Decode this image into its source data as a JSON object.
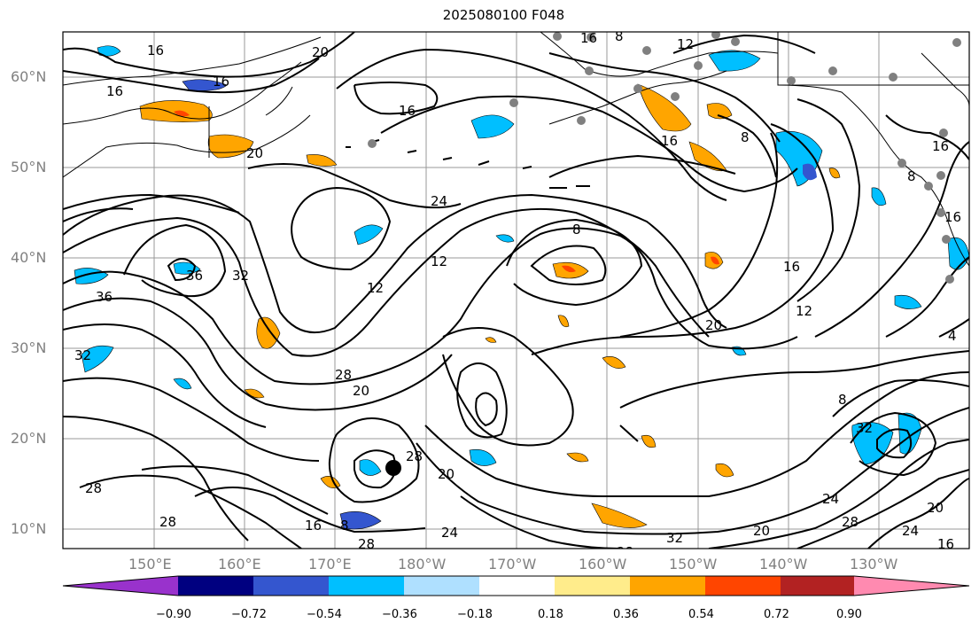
{
  "title": "2025080100 F048",
  "lat_labels": [
    "60°N",
    "50°N",
    "40°N",
    "30°N",
    "20°N",
    "10°N"
  ],
  "lon_labels": [
    "150°E",
    "160°E",
    "170°E",
    "180°W",
    "170°W",
    "160°W",
    "150°W",
    "140°W",
    "130°W"
  ],
  "colorbar": {
    "ticks": [
      "−0.90",
      "−0.72",
      "−0.54",
      "−0.36",
      "−0.18",
      "0.18",
      "0.36",
      "0.54",
      "0.72",
      "0.90"
    ],
    "colors": [
      "#9932cc",
      "#000080",
      "#3456cf",
      "#00bfff",
      "#afe0ff",
      "#ffffff",
      "#ffec8b",
      "#ffa500",
      "#ff4500",
      "#b22222",
      "#ff8ab0"
    ]
  },
  "contour_labels": [
    {
      "text": "16"
    },
    {
      "text": "20"
    },
    {
      "text": "16"
    },
    {
      "text": "16"
    },
    {
      "text": "16"
    },
    {
      "text": "20"
    },
    {
      "text": "16"
    },
    {
      "text": "12"
    },
    {
      "text": "8"
    },
    {
      "text": "8"
    },
    {
      "text": "16"
    },
    {
      "text": "8"
    },
    {
      "text": "16"
    },
    {
      "text": "16"
    },
    {
      "text": "24"
    },
    {
      "text": "12"
    },
    {
      "text": "8"
    },
    {
      "text": "36"
    },
    {
      "text": "36"
    },
    {
      "text": "32"
    },
    {
      "text": "32"
    },
    {
      "text": "28"
    },
    {
      "text": "20"
    },
    {
      "text": "12"
    },
    {
      "text": "16"
    },
    {
      "text": "12"
    },
    {
      "text": "20"
    },
    {
      "text": "8"
    },
    {
      "text": "4"
    },
    {
      "text": "32"
    },
    {
      "text": "28"
    },
    {
      "text": "20"
    },
    {
      "text": "28"
    },
    {
      "text": "8"
    },
    {
      "text": "16"
    },
    {
      "text": "28"
    },
    {
      "text": "24"
    },
    {
      "text": "24"
    },
    {
      "text": "28"
    },
    {
      "text": "20"
    },
    {
      "text": "24"
    },
    {
      "text": "20"
    },
    {
      "text": "16"
    },
    {
      "text": "32"
    },
    {
      "text": "28"
    },
    {
      "text": "28"
    }
  ]
}
